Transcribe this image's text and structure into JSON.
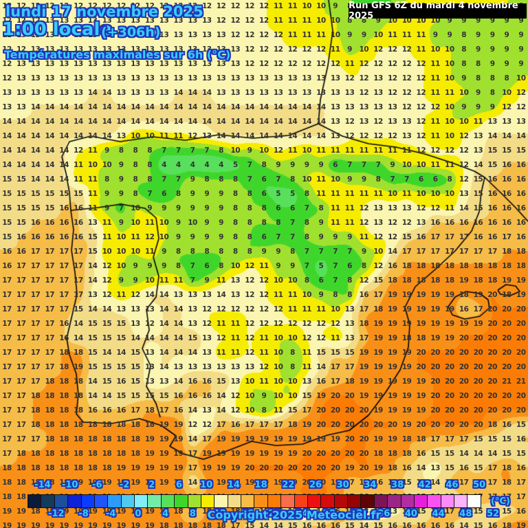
{
  "header": {
    "date_line": "lundi 17 novembre 2025",
    "time_line": "1:00 locale",
    "offset_label": "(+306h)",
    "subtitle": "Températures maximales sur 6h (°C)",
    "run_info": "Run GFS 6Z du mardi 4 novembre 2025"
  },
  "footer": {
    "copyright": "Copyright 2025 Meteociel.fr",
    "unit_label": "(°C)"
  },
  "legend": {
    "min": -16,
    "max": 52,
    "step": 2,
    "tick_labels_top": [
      -14,
      -10,
      -6,
      -2,
      2,
      6,
      10,
      14,
      18,
      22,
      26,
      30,
      34,
      38,
      42,
      46,
      50
    ],
    "tick_labels_bottom": [
      -12,
      -8,
      -4,
      0,
      4,
      8,
      12,
      16,
      20,
      24,
      28,
      32,
      36,
      40,
      44,
      48,
      52
    ],
    "cell_colors": [
      "#0d1b3a",
      "#143a5c",
      "#1c4f9e",
      "#0e22d8",
      "#0b3cff",
      "#1f54ff",
      "#2a9bff",
      "#4fc9f2",
      "#80eefc",
      "#72eca8",
      "#58e05c",
      "#3fd62c",
      "#a0e02e",
      "#f6ec00",
      "#faf5b0",
      "#f2dc88",
      "#f6bc48",
      "#f89018",
      "#fb7c04",
      "#fb6c4c",
      "#f84018",
      "#ee1010",
      "#d60c0c",
      "#b60808",
      "#940404",
      "#5e0406",
      "#7c1458",
      "#9c2486",
      "#b22ca2",
      "#e620da",
      "#fa52f2",
      "#fc8cfa",
      "#fcb4fc",
      "#ffffff"
    ]
  },
  "colors": {
    "background": "#f6f0a6",
    "title_fill": "#36cdfb",
    "title_outline": "#2036b8",
    "number_text": "#333333",
    "runbar_bg": "#000000",
    "runbar_text": "#ffffff",
    "coastline": "#000000"
  },
  "grid": {
    "cols": 37,
    "rows": 37,
    "values": [
      "12 12 12 12 12 12 12 12 12 12 12 12 12 12 12 12 12 12 12 11 11 10 10 9 8 7 7 8 10 10 10 10 10 10 10 10 8",
      "12 12 12 13 13 13 13 13 13 13 13 13 13 13 13 12 12 12 12 11 11 11 10 10 8 8 9 10 10 10 10 9 9 9 9 9 9",
      "12 13 13 13 13 13 13 13 13 13 13 13 13 13 13 13 12 12 12 12 11 11 11 10 9 9 10 11 11 11 9 9 8 9 9 9 9",
      "12 12 13 13 13 13 13 13 13 13 13 13 13 13 13 13 13 12 12 12 12 12 12 11 9 10 12 12 12 11 10 10 8 9 9 9 9",
      "12 13 13 13 13 13 13 13 13 13 13 13 13 13 13 13 13 12 12 12 12 12 12 12 11 12 12 12 12 12 11 10 8 8 9 9 9",
      "12 13 13 13 13 13 13 13 13 13 13 13 13 13 13 13 13 13 13 13 13 13 13 13 12 12 13 12 12 12 11 10 9 8 8 8 10",
      "13 13 13 13 13 13 14 14 13 13 13 13 14 14 14 13 13 13 13 13 13 13 13 13 13 12 13 12 12 12 11 11 10 9 8 10 12",
      "13 13 14 14 14 14 14 14 14 14 14 14 14 14 14 14 14 14 14 14 14 14 14 13 13 13 13 13 12 12 12 10 9 9 9 12 12",
      "14 14 14 14 14 14 14 14 14 14 14 14 14 14 14 14 14 14 14 14 14 14 14 13 12 13 12 13 13 12 11 10 10 11 13 13 13",
      "14 14 14 14 14 14 14 14 13 10 10 11 11 12 13 14 14 14 14 14 14 14 14 13 12 12 12 12 13 12 11 10 12 13 14 14 14",
      "14 14 14 14 14 12 11 9 8 8 8 7 7 7 7 8 10 9 10 12 11 10 11 11 11 11 11 11 11 12 12 12 12 13 15 15 15",
      "14 14 14 14 14 11 10 10 9 8 8 4 4 4 4 4 5 7 8 9 9 9 9 6 7 7 7 9 10 10 11 11 12 14 15 16 16",
      "15 15 14 14 14 11 11 8 9 8 8 7 7 9 8 8 8 7 6 7 8 10 11 10 9 9 8 7 7 6 6 8 12 15 16 16 16",
      "15 15 15 15 15 15 11 9 9 8 7 6 8 9 9 9 8 8 6 5 5 8 11 11 11 11 11 10 11 10 10 10 13 15 16 16 16",
      "15 15 15 15 16 16 11 9 7 10 9 9 9 9 9 9 8 8 8 6 6 7 8 11 11 12 13 13 13 12 12 11 14 15 16 16 16",
      "15 15 16 16 16 16 13 11 9 10 11 10 9 10 9 9 8 8 8 8 7 8 9 11 11 12 13 12 12 13 16 16 16 16 16 16 16",
      "15 16 16 16 16 16 15 11 10 11 12 10 9 9 9 9 8 8 6 7 7 8 9 9 9 11 12 12 15 16 17 17 17 16 16 17 16",
      "16 16 17 17 17 17 15 10 10 10 11 9 8 8 8 8 8 8 9 9 8 7 7 7 7 9 10 14 17 17 17 17 17 17 17 18 18",
      "16 17 17 17 17 17 14 12 10 9 9 9 8 7 6 8 10 12 11 9 9 7 5 7 6 8 12 16 18 18 18 18 18 18 18 18 18",
      "17 17 17 17 17 17 14 12 9 9 10 11 11 7 9 11 13 12 12 10 10 8 6 7 8 12 15 18 18 18 18 18 19 18 18 19 19",
      "17 17 17 17 17 17 13 12 11 12 14 14 13 13 13 14 13 12 12 11 11 10 9 8 8 16 17 19 19 19 19 19 18 19 20 18 19",
      "17 17 17 17 17 15 14 14 13 13 13 14 14 13 12 12 12 12 12 12 11 11 11 10 13 17 18 19 19 19 19 19 16 17 20 20 20",
      "17 17 17 17 16 14 15 15 15 13 12 14 14 13 12 11 11 12 12 12 12 12 12 12 13 18 19 19 19 19 19 19 19 19 20 20 20",
      "17 17 17 17 16 14 15 15 15 14 14 14 14 15 13 12 11 12 11 10 10 12 12 11 13 17 19 19 18 18 19 19 20 20 20 20 20",
      "17 17 17 17 18 18 15 14 14 15 13 14 14 14 13 11 11 12 11 10 8 11 15 15 15 19 19 19 19 20 20 20 20 20 20 20 20",
      "17 17 17 17 18 19 15 15 15 15 13 14 13 13 13 13 13 13 12 10 8 11 14 17 17 19 19 19 19 20 20 20 20 20 20 20 20",
      "17 17 17 18 18 18 14 15 16 15 13 13 14 16 16 15 13 10 11 10 10 13 16 17 18 19 19 19 19 19 20 20 20 20 20 21 21",
      "17 17 18 18 18 18 14 14 15 15 15 15 16 16 16 14 12 10 9 10 10 15 19 20 20 19 19 19 19 19 20 20 20 20 20 20 20",
      "17 17 18 18 18 18 16 16 16 17 18 17 16 14 13 14 12 10 8 11 15 17 20 20 20 20 19 19 19 19 20 20 20 20 20 20 20",
      "17 17 18 18 18 18 18 18 18 18 18 19 19 12 12 17 16 17 17 17 18 19 20 20 20 20 20 20 19 20 20 20 20 20 18 16 15",
      "17 17 17 18 18 18 18 18 18 18 19 19 19 14 17 19 19 19 19 19 19 19 19 19 20 20 19 19 18 18 17 17 17 15 15 15 16",
      "17 18 18 18 18 18 18 18 18 18 19 19 19 17 19 19 19 19 19 19 19 20 20 20 20 20 18 18 18 16 15 15 14 14 14 15 15",
      "18 18 18 18 18 18 18 18 19 19 19 19 19 17 19 19 19 20 20 20 20 20 20 20 19 20 19 18 16 14 13 15 16 15 17 18 16",
      "18 18 18 18 18 19 19 19 19 19 19 19 19 14 18 19 19 19 19 19 19 20 20 19 17 17 16 17 15 14 14 16 17 17 17 18 17",
      "18 18 18 18 19 19 19 19 19 19 19 19 19 18 18 19 19 19 19 19 19 20 20 19 17 16 16 16 16 15 14 15 16 17 17 17 17",
      "19 19 18 18 19 19 19 19 19 19 19 18 18 17 18 18 18 17 15 15 12 11 14 16 17 13 12 13 14 15 16 17 17 15 14 15 16",
      "19 19 19 19 19 19 19 19 19 19 19 18 18 18 18 18 17 15 14 14 15 16 16 16 15 14 15 16 16 16 16 16 14 15 16 18 19"
    ]
  }
}
